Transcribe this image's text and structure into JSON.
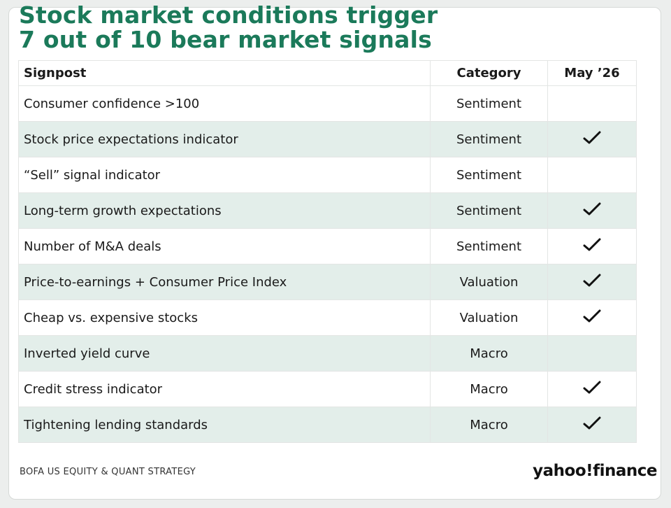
{
  "title_line1": "Stock market conditions trigger",
  "title_line2": "7 out of 10 bear market signals",
  "source": "BOFA US EQUITY & QUANT STRATEGY",
  "logo": "yahoo!finance",
  "colors": {
    "title": "#1b7a5a",
    "row_shade": "#e3eeea"
  },
  "icons": {
    "check": "check-icon"
  },
  "chart_data": {
    "type": "table",
    "columns": [
      "Signpost",
      "Category",
      "May ’26"
    ],
    "rows": [
      {
        "signpost": "Consumer confidence >100",
        "category": "Sentiment",
        "triggered": false
      },
      {
        "signpost": "Stock price expectations indicator",
        "category": "Sentiment",
        "triggered": true
      },
      {
        "signpost": "“Sell” signal indicator",
        "category": "Sentiment",
        "triggered": false
      },
      {
        "signpost": "Long-term growth expectations",
        "category": "Sentiment",
        "triggered": true
      },
      {
        "signpost": "Number of M&A deals",
        "category": "Sentiment",
        "triggered": true
      },
      {
        "signpost": "Price-to-earnings + Consumer Price Index",
        "category": "Valuation",
        "triggered": true
      },
      {
        "signpost": "Cheap vs. expensive stocks",
        "category": "Valuation",
        "triggered": true
      },
      {
        "signpost": "Inverted yield curve",
        "category": "Macro",
        "triggered": false
      },
      {
        "signpost": "Credit stress indicator",
        "category": "Macro",
        "triggered": true
      },
      {
        "signpost": "Tightening lending standards",
        "category": "Macro",
        "triggered": true
      }
    ]
  }
}
